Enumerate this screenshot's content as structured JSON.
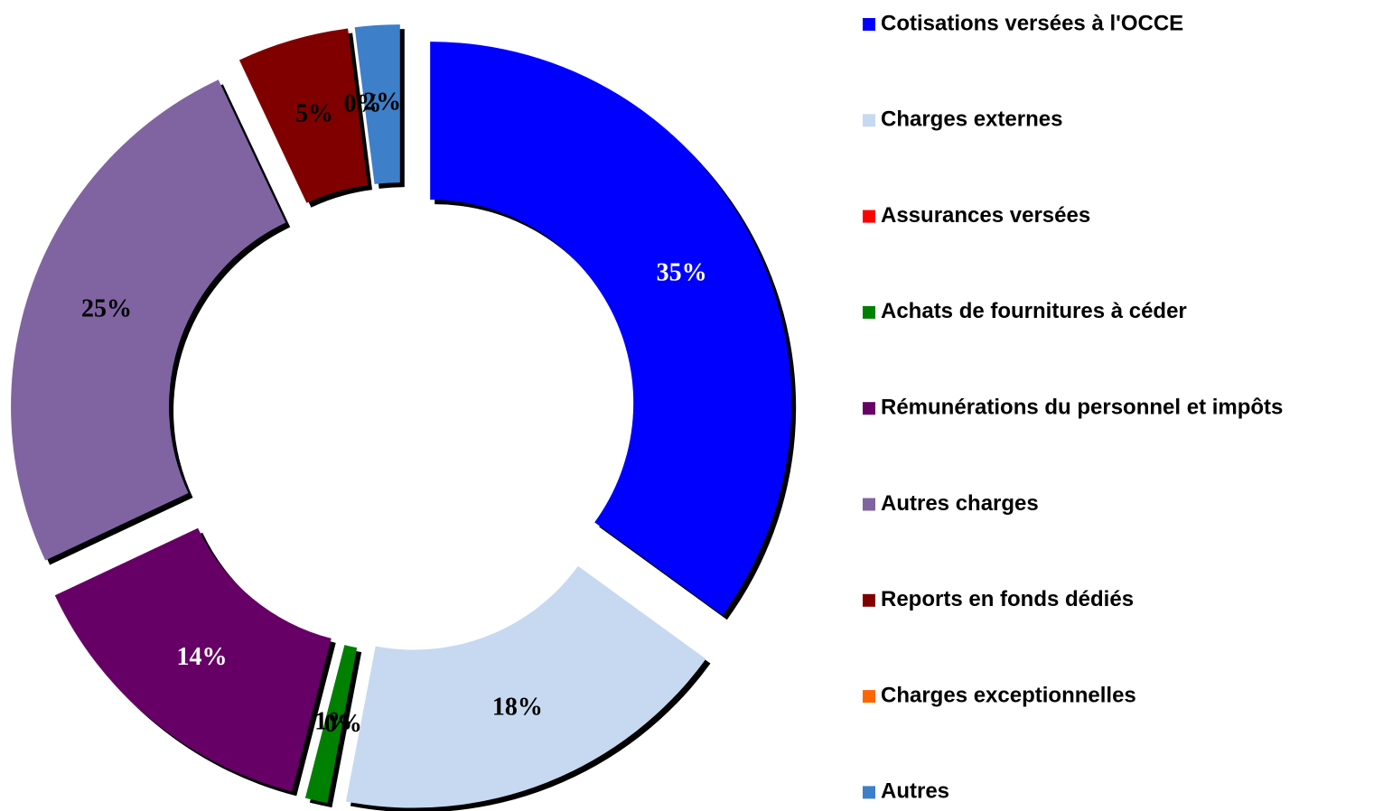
{
  "chart_data": {
    "type": "donut",
    "categories": [
      "Cotisations versées à l'OCCE",
      "Charges externes",
      "Assurances versées",
      "Achats de fournitures à céder",
      "Rémunérations du personnel et impôts",
      "Autres charges",
      "Reports en fonds dédiés",
      "Charges exceptionnelles",
      "Autres"
    ],
    "values": [
      35,
      18,
      0,
      1,
      14,
      25,
      5,
      0,
      2
    ],
    "value_labels": [
      "35%",
      "18%",
      "0%",
      "1%",
      "14%",
      "25%",
      "5%",
      "0%",
      "2%"
    ],
    "colors": [
      "#0000ff",
      "#c6d9f1",
      "#ff0000",
      "#008000",
      "#660066",
      "#8064a2",
      "#800000",
      "#ff6600",
      "#3d7fc9"
    ],
    "label_colors": [
      "#ffffff",
      "#000000",
      "#000000",
      "#000000",
      "#ffffff",
      "#000000",
      "#000000",
      "#000000",
      "#000000"
    ],
    "legend": "right"
  }
}
